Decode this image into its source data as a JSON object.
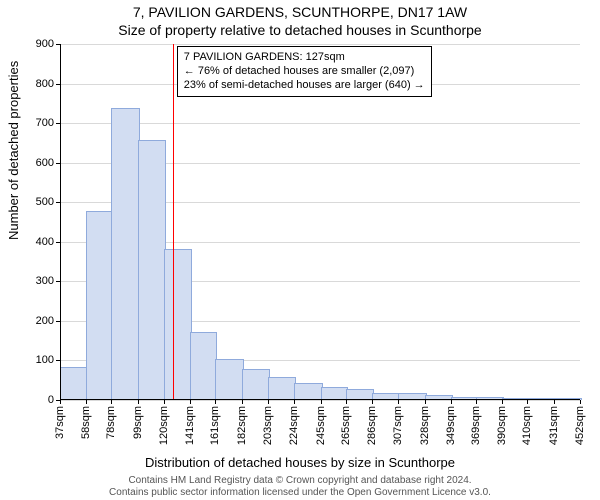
{
  "title": "7, PAVILION GARDENS, SCUNTHORPE, DN17 1AW",
  "subtitle": "Size of property relative to detached houses in Scunthorpe",
  "ylabel": "Number of detached properties",
  "xlabel": "Distribution of detached houses by size in Scunthorpe",
  "footer_line1": "Contains HM Land Registry data © Crown copyright and database right 2024.",
  "footer_line2": "Contains public sector information licensed under the Open Government Licence v3.0.",
  "chart": {
    "type": "histogram",
    "ylim": [
      0,
      900
    ],
    "ytick_step": 100,
    "yticks": [
      0,
      100,
      200,
      300,
      400,
      500,
      600,
      700,
      800,
      900
    ],
    "xtick_labels": [
      "37sqm",
      "58sqm",
      "78sqm",
      "99sqm",
      "120sqm",
      "141sqm",
      "161sqm",
      "182sqm",
      "203sqm",
      "224sqm",
      "245sqm",
      "265sqm",
      "286sqm",
      "307sqm",
      "328sqm",
      "349sqm",
      "369sqm",
      "390sqm",
      "410sqm",
      "431sqm",
      "452sqm"
    ],
    "x_positions": [
      37,
      58,
      78,
      99,
      120,
      141,
      161,
      182,
      203,
      224,
      245,
      265,
      286,
      307,
      328,
      349,
      369,
      390,
      410,
      431,
      452
    ],
    "bar_edges": [
      37,
      58,
      78,
      99,
      120,
      141,
      161,
      182,
      203,
      224,
      245,
      265,
      286,
      307,
      328,
      349,
      369,
      390,
      410,
      431,
      452
    ],
    "bar_values": [
      80,
      475,
      735,
      655,
      380,
      170,
      100,
      75,
      55,
      40,
      30,
      25,
      15,
      15,
      10,
      5,
      5,
      3,
      3,
      3
    ],
    "bar_fill": "#d2ddf2",
    "bar_stroke": "#8faadc",
    "grid_color": "#d9d9d9",
    "background": "#ffffff",
    "vline_x": 127,
    "vline_color": "#ff0000",
    "title_fontsize": 14,
    "subtitle_fontsize": 14,
    "label_fontsize": 13,
    "tick_fontsize": 11,
    "annot_fontsize": 11
  },
  "annotation": {
    "line1": "7 PAVILION GARDENS: 127sqm",
    "line2": "← 76% of detached houses are smaller (2,097)",
    "line3": "23% of semi-detached houses are larger (640) →"
  }
}
